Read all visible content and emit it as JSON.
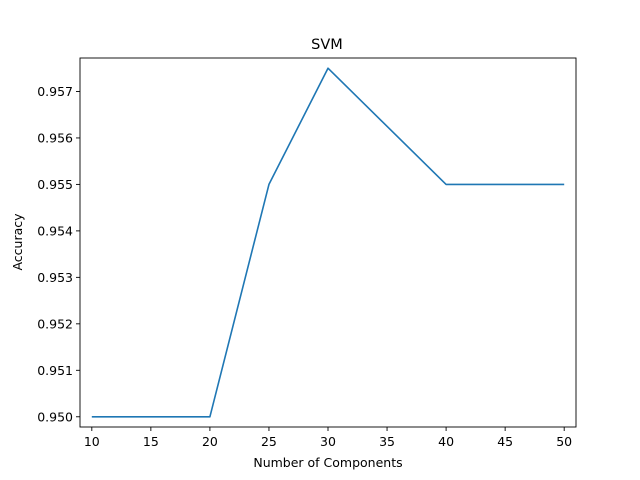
{
  "chart_data": {
    "type": "line",
    "title": "SVM",
    "xlabel": "Number of Components",
    "ylabel": "Accuracy",
    "xlim": [
      9,
      51
    ],
    "ylim": [
      0.94978,
      0.95772
    ],
    "xticks": [
      10,
      15,
      20,
      25,
      30,
      35,
      40,
      45,
      50
    ],
    "yticks": [
      0.95,
      0.951,
      0.952,
      0.953,
      0.954,
      0.955,
      0.956,
      0.957
    ],
    "grid": false,
    "series": [
      {
        "color": "#1f77b4",
        "x": [
          10,
          20,
          25,
          30,
          40,
          50
        ],
        "y": [
          0.95,
          0.95,
          0.955,
          0.9575,
          0.955,
          0.955
        ]
      }
    ]
  }
}
